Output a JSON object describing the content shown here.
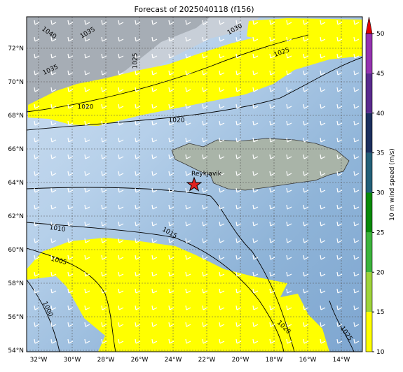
{
  "title": "Forecast of 2025040118 (f156)",
  "lat_labels": [
    "72°N",
    "70°N",
    "68°N",
    "66°N",
    "64°N",
    "62°N",
    "60°N",
    "58°N",
    "56°N",
    "54°N"
  ],
  "lon_labels": [
    "32°W",
    "30°W",
    "28°W",
    "26°W",
    "24°W",
    "22°W",
    "20°W",
    "18°W",
    "16°W",
    "14°W"
  ],
  "colorbar": {
    "label": "10 m wind speed (m/s)",
    "ticks": [
      10,
      15,
      20,
      25,
      30,
      35,
      40,
      45,
      50
    ],
    "colors": [
      "#ffff00",
      "#9fd43a",
      "#3cb43c",
      "#088a08",
      "#236079",
      "#1b2f5e",
      "#5a2a8e",
      "#9632b0"
    ],
    "extend_color": "#e00000"
  },
  "contour_labels": [
    "1040",
    "1035",
    "1030",
    "1025",
    "1035",
    "1025",
    "1020",
    "1020",
    "1010",
    "1015",
    "1005",
    "1000",
    "1020",
    "1025"
  ],
  "city": "Reykjavik"
}
